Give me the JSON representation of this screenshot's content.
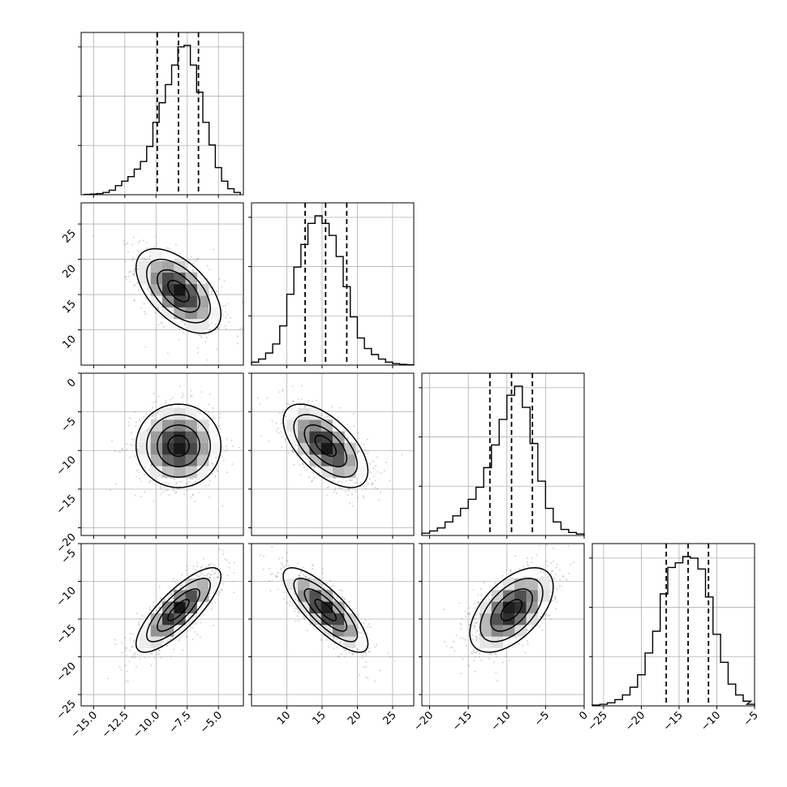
{
  "chart_data": {
    "type": "corner",
    "grid": true,
    "colors": {
      "frame": "#000000",
      "grid": "#b0b0b0",
      "points": "#808080",
      "contours": "#000000"
    },
    "params": [
      {
        "id": "p1",
        "label": "",
        "range": [
          -16.0,
          -3.0
        ],
        "ticks": [
          -15.0,
          -12.5,
          -10.0,
          -7.5,
          -5.0
        ],
        "tick_labels": [
          "−15.0",
          "−12.5",
          "−10.0",
          "−7.5",
          "−5.0"
        ],
        "quantiles": [
          -9.9,
          -8.2,
          -6.6
        ],
        "hist_x": [
          -15.5,
          -15.0,
          -14.5,
          -14.0,
          -13.5,
          -13.0,
          -12.5,
          -12.0,
          -11.5,
          -11.0,
          -10.5,
          -10.0,
          -9.5,
          -9.0,
          -8.5,
          -8.0,
          -7.5,
          -7.0,
          -6.5,
          -6.0,
          -5.5,
          -5.0,
          -4.5,
          -4.0,
          -3.5
        ],
        "hist_y": [
          0.2,
          0.4,
          0.8,
          1.5,
          3.0,
          6.0,
          9.0,
          12.0,
          17.0,
          22.0,
          32.0,
          48.0,
          61.0,
          73.0,
          86.0,
          98.0,
          99.0,
          86.0,
          68.0,
          48.0,
          33.0,
          18.0,
          9.0,
          4.0,
          1.5
        ]
      },
      {
        "id": "p2",
        "label": "",
        "range": [
          5.0,
          28.0
        ],
        "ticks": [
          10,
          15,
          20,
          25
        ],
        "tick_labels": [
          "10",
          "15",
          "20",
          "25"
        ],
        "quantiles": [
          12.6,
          15.5,
          18.5
        ],
        "hist_x": [
          5.5,
          6.5,
          7.5,
          8.5,
          9.5,
          10.5,
          11.5,
          12.5,
          13.5,
          14.5,
          15.5,
          16.5,
          17.5,
          18.5,
          19.5,
          20.5,
          21.5,
          22.5,
          23.5,
          24.5,
          25.5,
          26.5,
          27.5
        ],
        "hist_y": [
          2,
          4,
          8,
          14,
          26,
          47,
          65,
          80,
          94,
          99,
          94,
          86,
          72,
          52,
          32,
          18,
          11,
          7,
          4,
          2,
          1,
          0.5,
          0.2
        ]
      },
      {
        "id": "p3",
        "label": "",
        "range": [
          -21.0,
          0.0
        ],
        "ticks": [
          0,
          -5,
          -10,
          -15,
          -20
        ],
        "tick_labels": [
          "0",
          "−5",
          "−10",
          "−15",
          "−20"
        ],
        "quantiles": [
          -12.2,
          -9.4,
          -6.7
        ],
        "hist_x": [
          -20.5,
          -19.5,
          -18.5,
          -17.5,
          -16.5,
          -15.5,
          -14.5,
          -13.5,
          -12.5,
          -11.5,
          -10.5,
          -9.5,
          -8.5,
          -7.5,
          -6.5,
          -5.5,
          -4.5,
          -3.5,
          -2.5,
          -1.5,
          -0.5
        ],
        "hist_y": [
          1.5,
          3,
          5,
          9,
          13,
          18,
          24,
          32,
          45,
          60,
          77,
          93,
          99,
          85,
          61,
          36,
          18,
          9,
          4,
          2,
          1
        ]
      },
      {
        "id": "p4",
        "label": "",
        "range": [
          -26.5,
          -5.0
        ],
        "ticks": [
          -5,
          -10,
          -15,
          -20,
          -25
        ],
        "tick_labels": [
          "−5",
          "−10",
          "−15",
          "−20",
          "−25"
        ],
        "quantiles": [
          -16.7,
          -13.8,
          -11.1
        ],
        "hist_x": [
          -26,
          -25,
          -24,
          -23,
          -22,
          -21,
          -20,
          -19,
          -18,
          -17,
          -16,
          -15,
          -14,
          -13,
          -12,
          -11,
          -10,
          -9,
          -8,
          -7,
          -6,
          -5.5
        ],
        "hist_y": [
          0.5,
          1,
          2,
          4,
          7,
          12,
          20,
          34,
          48,
          72,
          89,
          92,
          96,
          95,
          88,
          70,
          46,
          28,
          14,
          7,
          3,
          1
        ]
      }
    ],
    "pairs": [
      {
        "x": "p1",
        "y": "p2",
        "mean": [
          -8.2,
          15.5
        ],
        "sd": [
          1.7,
          3.0
        ],
        "rho": -0.55
      },
      {
        "x": "p1",
        "y": "p3",
        "mean": [
          -8.2,
          -9.4
        ],
        "sd": [
          1.7,
          2.7
        ],
        "rho": 0.0
      },
      {
        "x": "p2",
        "y": "p3",
        "mean": [
          15.5,
          -9.4
        ],
        "sd": [
          3.0,
          2.7
        ],
        "rho": -0.6
      },
      {
        "x": "p1",
        "y": "p4",
        "mean": [
          -8.2,
          -13.8
        ],
        "sd": [
          1.7,
          2.8
        ],
        "rho": 0.8
      },
      {
        "x": "p2",
        "y": "p4",
        "mean": [
          15.5,
          -13.8
        ],
        "sd": [
          3.0,
          2.8
        ],
        "rho": -0.8
      },
      {
        "x": "p3",
        "y": "p4",
        "mean": [
          -9.4,
          -13.8
        ],
        "sd": [
          2.7,
          2.8
        ],
        "rho": 0.55
      }
    ]
  }
}
